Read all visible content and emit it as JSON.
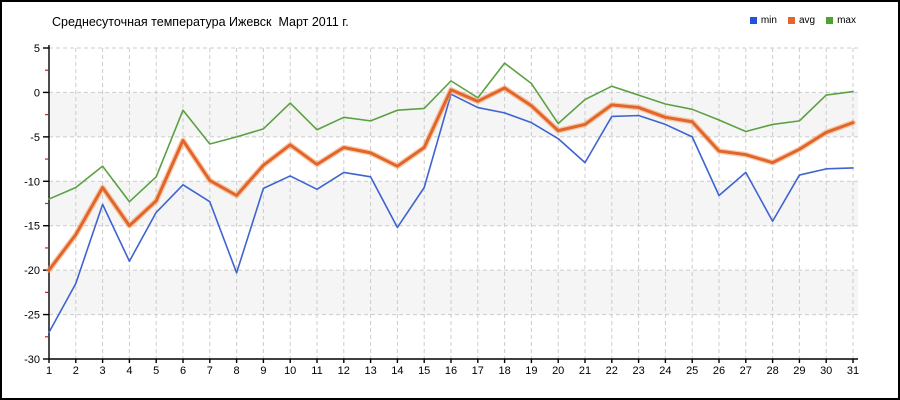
{
  "title": "Среднесуточная температура Ижевск  Март 2011 г.",
  "legend": [
    {
      "label": "min",
      "color": "#2353d8"
    },
    {
      "label": "avg",
      "color": "#e2662c"
    },
    {
      "label": "max",
      "color": "#4da32f"
    }
  ],
  "chart_data": {
    "type": "line",
    "title": "Среднесуточная температура Ижевск  Март 2011 г.",
    "xlabel": "",
    "ylabel": "",
    "x": [
      1,
      2,
      3,
      4,
      5,
      6,
      7,
      8,
      9,
      10,
      11,
      12,
      13,
      14,
      15,
      16,
      17,
      18,
      19,
      20,
      21,
      22,
      23,
      24,
      25,
      26,
      27,
      28,
      29,
      30,
      31
    ],
    "xlim": [
      1,
      31
    ],
    "ylim": [
      -30,
      5
    ],
    "ytick_step": 5,
    "yticks": [
      5,
      0,
      -5,
      -10,
      -15,
      -20,
      -25,
      -30
    ],
    "grid": true,
    "grid_style": "dashed",
    "grid_color": "#cccccc",
    "band_color": "#f5f5f5",
    "axis_color": "#000000",
    "minor_tick_color": "#cc2222",
    "legend_position": "top-right",
    "series": [
      {
        "name": "min",
        "color": "#3e64d1",
        "width": 1.6,
        "values": [
          -27,
          -21.5,
          -12.6,
          -19,
          -13.5,
          -10.4,
          -12.3,
          -20.3,
          -10.8,
          -9.4,
          -10.9,
          -9.0,
          -9.5,
          -15.2,
          -10.7,
          -0.2,
          -1.7,
          -2.3,
          -3.4,
          -5.2,
          -7.9,
          -2.7,
          -2.6,
          -3.6,
          -5.0,
          -11.6,
          -9.0,
          -14.5,
          -9.3,
          -8.6,
          -8.5
        ]
      },
      {
        "name": "avg",
        "color": "#e2662c",
        "width": 3.0,
        "halo": "#f3a268",
        "values": [
          -20,
          -16,
          -10.7,
          -15,
          -12.2,
          -5.4,
          -9.9,
          -11.6,
          -8.2,
          -5.9,
          -8.1,
          -6.2,
          -6.8,
          -8.3,
          -6.2,
          0.3,
          -1.0,
          0.5,
          -1.5,
          -4.3,
          -3.6,
          -1.4,
          -1.7,
          -2.8,
          -3.3,
          -6.6,
          -7.0,
          -7.9,
          -6.4,
          -4.5,
          -3.4
        ]
      },
      {
        "name": "max",
        "color": "#5ba143",
        "width": 1.6,
        "values": [
          -12,
          -10.7,
          -8.3,
          -12.3,
          -9.5,
          -2.0,
          -5.8,
          -5.0,
          -4.1,
          -1.2,
          -4.2,
          -2.8,
          -3.2,
          -2.0,
          -1.8,
          1.3,
          -0.6,
          3.3,
          1.0,
          -3.5,
          -0.8,
          0.7,
          -0.3,
          -1.3,
          -1.9,
          -3.1,
          -4.4,
          -3.6,
          -3.2,
          -0.3,
          0.1
        ]
      }
    ]
  }
}
